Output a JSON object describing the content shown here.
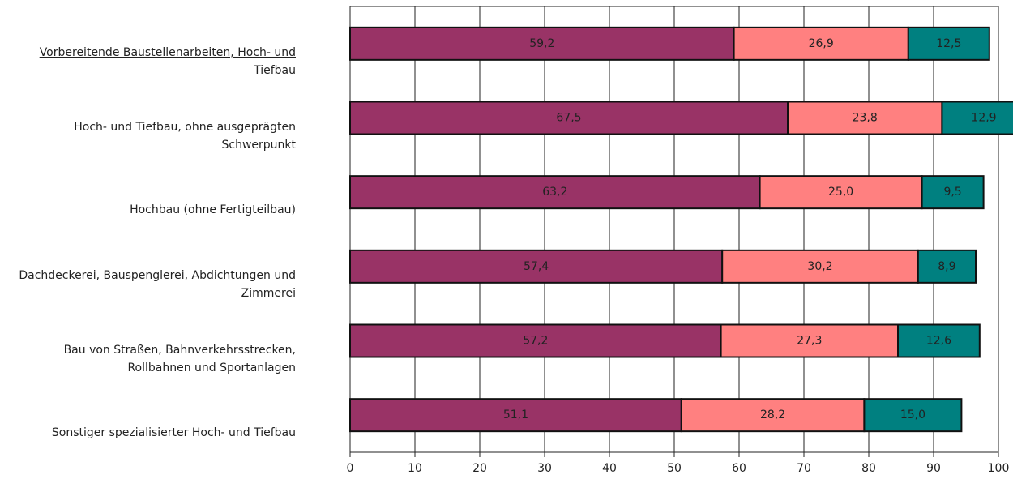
{
  "chart_data": {
    "type": "stacked-barh",
    "categories": [
      "Vorbereitende Baustellenarbeiten, Hoch- und Tiefbau",
      "Hoch- und Tiefbau, ohne ausgeprägten Schwerpunkt",
      "Hochbau (ohne Fertigteilbau)",
      "Dachdeckerei, Bauspenglerei, Abdichtungen und Zimmerei",
      "Bau von Straßen, Bahnverkehrsstrecken, Rollbahnen und Sportanlagen",
      "Sonstiger spezialisierter Hoch- und Tiefbau"
    ],
    "series": [
      {
        "color": "#993366",
        "values": [
          59.2,
          67.5,
          63.2,
          57.4,
          57.2,
          51.1
        ],
        "value_labels": [
          "59,2",
          "67,5",
          "63,2",
          "57,4",
          "57,2",
          "51,1"
        ]
      },
      {
        "color": "#ff8080",
        "values": [
          26.9,
          23.8,
          25.0,
          30.2,
          27.3,
          28.2
        ],
        "value_labels": [
          "26,9",
          "23,8",
          "25,0",
          "30,2",
          "27,3",
          "28,2"
        ]
      },
      {
        "color": "#008080",
        "values": [
          12.5,
          12.9,
          9.5,
          8.9,
          12.6,
          15.0
        ],
        "value_labels": [
          "12,5",
          "12,9",
          "9,5",
          "8,9",
          "12,6",
          "15,0"
        ]
      }
    ],
    "xlim": [
      0,
      100
    ],
    "xticks": [
      0,
      10,
      20,
      30,
      40,
      50,
      60,
      70,
      80,
      90,
      100
    ],
    "grid": true
  }
}
